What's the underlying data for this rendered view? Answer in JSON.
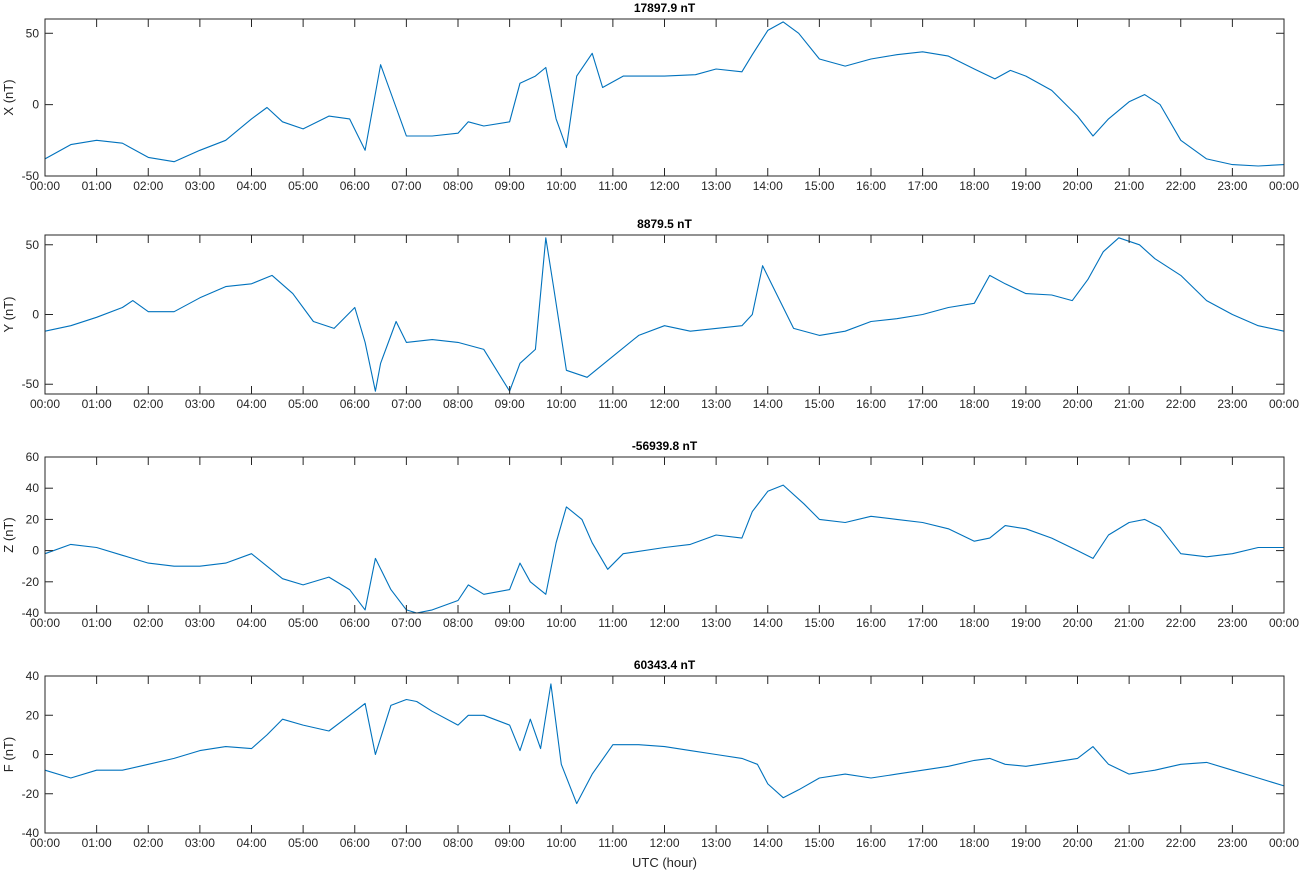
{
  "chart_data": [
    {
      "type": "line",
      "title": "17897.9 nT",
      "ylabel": "X (nT)",
      "xlabel": "",
      "xlim": [
        0,
        24
      ],
      "ylim": [
        -50,
        60
      ],
      "yticks": [
        -50,
        0,
        50
      ],
      "xtick_labels": [
        "00:00",
        "01:00",
        "02:00",
        "03:00",
        "04:00",
        "05:00",
        "06:00",
        "07:00",
        "08:00",
        "09:00",
        "10:00",
        "11:00",
        "12:00",
        "13:00",
        "14:00",
        "15:00",
        "16:00",
        "17:00",
        "18:00",
        "19:00",
        "20:00",
        "21:00",
        "22:00",
        "23:00",
        "00:00"
      ],
      "color": "#0072bd",
      "x": [
        0,
        0.5,
        1,
        1.5,
        2,
        2.5,
        3,
        3.5,
        4,
        4.3,
        4.6,
        5,
        5.5,
        5.9,
        6.2,
        6.5,
        6.8,
        7,
        7.5,
        8,
        8.2,
        8.5,
        9,
        9.2,
        9.5,
        9.7,
        9.9,
        10.1,
        10.3,
        10.6,
        10.8,
        11.2,
        12,
        12.6,
        13,
        13.5,
        13.7,
        14,
        14.3,
        14.6,
        15,
        15.5,
        16,
        16.5,
        17,
        17.5,
        18,
        18.4,
        18.7,
        19,
        19.5,
        20,
        20.3,
        20.6,
        21,
        21.3,
        21.6,
        22,
        22.5,
        23,
        23.5,
        24
      ],
      "values": [
        -38,
        -28,
        -25,
        -27,
        -37,
        -40,
        -32,
        -25,
        -10,
        -2,
        -12,
        -17,
        -8,
        -10,
        -32,
        28,
        -2,
        -22,
        -22,
        -20,
        -12,
        -15,
        -12,
        15,
        20,
        26,
        -10,
        -30,
        20,
        36,
        12,
        20,
        20,
        21,
        25,
        23,
        35,
        52,
        58,
        50,
        32,
        27,
        32,
        35,
        37,
        34,
        25,
        18,
        24,
        20,
        10,
        -8,
        -22,
        -10,
        2,
        7,
        0,
        -25,
        -38,
        -42,
        -43,
        -42
      ]
    },
    {
      "type": "line",
      "title": "8879.5 nT",
      "ylabel": "Y (nT)",
      "xlabel": "",
      "xlim": [
        0,
        24
      ],
      "ylim": [
        -57,
        57
      ],
      "yticks": [
        -50,
        0,
        50
      ],
      "xtick_labels": [
        "00:00",
        "01:00",
        "02:00",
        "03:00",
        "04:00",
        "05:00",
        "06:00",
        "07:00",
        "08:00",
        "09:00",
        "10:00",
        "11:00",
        "12:00",
        "13:00",
        "14:00",
        "15:00",
        "16:00",
        "17:00",
        "18:00",
        "19:00",
        "20:00",
        "21:00",
        "22:00",
        "23:00",
        "00:00"
      ],
      "color": "#0072bd",
      "x": [
        0,
        0.5,
        1,
        1.5,
        1.7,
        2,
        2.5,
        3,
        3.5,
        4,
        4.4,
        4.8,
        5.2,
        5.6,
        6,
        6.2,
        6.4,
        6.5,
        6.8,
        7,
        7.5,
        8,
        8.5,
        9,
        9.2,
        9.5,
        9.7,
        9.85,
        10.1,
        10.5,
        11,
        11.5,
        12,
        12.5,
        13,
        13.5,
        13.7,
        13.9,
        14.1,
        14.5,
        15,
        15.5,
        16,
        16.5,
        17,
        17.5,
        18,
        18.3,
        18.6,
        19,
        19.5,
        19.9,
        20.2,
        20.5,
        20.8,
        21.2,
        21.5,
        22,
        22.5,
        23,
        23.5,
        24
      ],
      "values": [
        -12,
        -8,
        -2,
        5,
        10,
        2,
        2,
        12,
        20,
        22,
        28,
        15,
        -5,
        -10,
        5,
        -20,
        -55,
        -35,
        -5,
        -20,
        -18,
        -20,
        -25,
        -55,
        -35,
        -25,
        55,
        20,
        -40,
        -45,
        -30,
        -15,
        -8,
        -12,
        -10,
        -8,
        0,
        35,
        20,
        -10,
        -15,
        -12,
        -5,
        -3,
        0,
        5,
        8,
        28,
        22,
        15,
        14,
        10,
        25,
        45,
        55,
        50,
        40,
        28,
        10,
        0,
        -8,
        -12
      ]
    },
    {
      "type": "line",
      "title": "-56939.8 nT",
      "ylabel": "Z (nT)",
      "xlabel": "",
      "xlim": [
        0,
        24
      ],
      "ylim": [
        -40,
        60
      ],
      "yticks": [
        -40,
        -20,
        0,
        20,
        40,
        60
      ],
      "xtick_labels": [
        "00:00",
        "01:00",
        "02:00",
        "03:00",
        "04:00",
        "05:00",
        "06:00",
        "07:00",
        "08:00",
        "09:00",
        "10:00",
        "11:00",
        "12:00",
        "13:00",
        "14:00",
        "15:00",
        "16:00",
        "17:00",
        "18:00",
        "19:00",
        "20:00",
        "21:00",
        "22:00",
        "23:00",
        "00:00"
      ],
      "color": "#0072bd",
      "x": [
        0,
        0.5,
        1,
        1.5,
        2,
        2.5,
        3,
        3.5,
        4,
        4.3,
        4.6,
        5,
        5.5,
        5.9,
        6.2,
        6.4,
        6.7,
        7,
        7.2,
        7.5,
        8,
        8.2,
        8.5,
        9,
        9.2,
        9.4,
        9.7,
        9.9,
        10.1,
        10.4,
        10.6,
        10.9,
        11.2,
        12,
        12.5,
        13,
        13.5,
        13.7,
        14,
        14.3,
        14.7,
        15,
        15.5,
        16,
        16.5,
        17,
        17.5,
        18,
        18.3,
        18.6,
        19,
        19.5,
        20,
        20.3,
        20.6,
        21,
        21.3,
        21.6,
        22,
        22.5,
        23,
        23.5,
        24
      ],
      "values": [
        -2,
        4,
        2,
        -3,
        -8,
        -10,
        -10,
        -8,
        -2,
        -10,
        -18,
        -22,
        -17,
        -25,
        -38,
        -5,
        -25,
        -38,
        -40,
        -38,
        -32,
        -22,
        -28,
        -25,
        -8,
        -20,
        -28,
        5,
        28,
        20,
        5,
        -12,
        -2,
        2,
        4,
        10,
        8,
        25,
        38,
        42,
        30,
        20,
        18,
        22,
        20,
        18,
        14,
        6,
        8,
        16,
        14,
        8,
        0,
        -5,
        10,
        18,
        20,
        15,
        -2,
        -4,
        -2,
        2,
        2
      ]
    },
    {
      "type": "line",
      "title": "60343.4 nT",
      "ylabel": "F (nT)",
      "xlabel": "UTC (hour)",
      "xlim": [
        0,
        24
      ],
      "ylim": [
        -40,
        40
      ],
      "yticks": [
        -40,
        -20,
        0,
        20,
        40
      ],
      "xtick_labels": [
        "00:00",
        "01:00",
        "02:00",
        "03:00",
        "04:00",
        "05:00",
        "06:00",
        "07:00",
        "08:00",
        "09:00",
        "10:00",
        "11:00",
        "12:00",
        "13:00",
        "14:00",
        "15:00",
        "16:00",
        "17:00",
        "18:00",
        "19:00",
        "20:00",
        "21:00",
        "22:00",
        "23:00",
        "00:00"
      ],
      "color": "#0072bd",
      "x": [
        0,
        0.5,
        1,
        1.5,
        2,
        2.5,
        3,
        3.5,
        4,
        4.3,
        4.6,
        5,
        5.5,
        5.9,
        6.2,
        6.4,
        6.7,
        7,
        7.2,
        7.5,
        8,
        8.2,
        8.5,
        9,
        9.2,
        9.4,
        9.6,
        9.8,
        10,
        10.3,
        10.6,
        11,
        11.5,
        12,
        12.5,
        13,
        13.5,
        13.8,
        14,
        14.3,
        14.6,
        15,
        15.5,
        16,
        16.5,
        17,
        17.5,
        18,
        18.3,
        18.6,
        19,
        19.5,
        20,
        20.3,
        20.6,
        21,
        21.5,
        22,
        22.5,
        23,
        23.5,
        24
      ],
      "values": [
        -8,
        -12,
        -8,
        -8,
        -5,
        -2,
        2,
        4,
        3,
        10,
        18,
        15,
        12,
        20,
        26,
        0,
        25,
        28,
        27,
        22,
        15,
        20,
        20,
        15,
        2,
        18,
        3,
        36,
        -5,
        -25,
        -10,
        5,
        5,
        4,
        2,
        0,
        -2,
        -5,
        -15,
        -22,
        -18,
        -12,
        -10,
        -12,
        -10,
        -8,
        -6,
        -3,
        -2,
        -5,
        -6,
        -4,
        -2,
        4,
        -5,
        -10,
        -8,
        -5,
        -4,
        -8,
        -12,
        -16
      ]
    }
  ]
}
